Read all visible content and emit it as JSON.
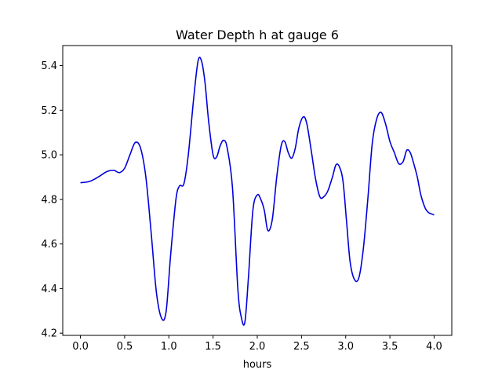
{
  "chart_data": {
    "type": "line",
    "title": "Water Depth h at gauge 6",
    "xlabel": "hours",
    "ylabel": "",
    "xlim": [
      -0.2,
      4.2
    ],
    "ylim": [
      4.19,
      5.49
    ],
    "grid": false,
    "x_ticks": [
      0.0,
      0.5,
      1.0,
      1.5,
      2.0,
      2.5,
      3.0,
      3.5,
      4.0
    ],
    "x_tick_labels": [
      "0.0",
      "0.5",
      "1.0",
      "1.5",
      "2.0",
      "2.5",
      "3.0",
      "3.5",
      "4.0"
    ],
    "y_ticks": [
      4.2,
      4.4,
      4.6,
      4.8,
      5.0,
      5.2,
      5.4
    ],
    "y_tick_labels": [
      "4.2",
      "4.4",
      "4.6",
      "4.8",
      "5.0",
      "5.2",
      "5.4"
    ],
    "series": [
      {
        "color": "#0000dd",
        "x": [
          0.0,
          0.1,
          0.2,
          0.3,
          0.38,
          0.44,
          0.5,
          0.56,
          0.62,
          0.68,
          0.74,
          0.8,
          0.86,
          0.92,
          0.97,
          1.02,
          1.08,
          1.12,
          1.17,
          1.22,
          1.28,
          1.33,
          1.37,
          1.41,
          1.45,
          1.5,
          1.54,
          1.58,
          1.62,
          1.66,
          1.72,
          1.78,
          1.82,
          1.86,
          1.9,
          1.95,
          2.0,
          2.04,
          2.08,
          2.12,
          2.17,
          2.22,
          2.27,
          2.31,
          2.35,
          2.39,
          2.43,
          2.47,
          2.52,
          2.56,
          2.61,
          2.66,
          2.71,
          2.76,
          2.8,
          2.85,
          2.89,
          2.93,
          2.97,
          3.01,
          3.05,
          3.1,
          3.15,
          3.2,
          3.25,
          3.3,
          3.35,
          3.4,
          3.45,
          3.5,
          3.55,
          3.6,
          3.65,
          3.69,
          3.73,
          3.77,
          3.81,
          3.85,
          3.9,
          3.94,
          3.97,
          4.0
        ],
        "y": [
          4.875,
          4.88,
          4.9,
          4.925,
          4.93,
          4.92,
          4.94,
          5.0,
          5.055,
          5.03,
          4.9,
          4.65,
          4.38,
          4.265,
          4.3,
          4.55,
          4.8,
          4.86,
          4.87,
          5.0,
          5.25,
          5.42,
          5.42,
          5.32,
          5.15,
          5.0,
          4.99,
          5.04,
          5.065,
          5.03,
          4.85,
          4.4,
          4.27,
          4.25,
          4.45,
          4.75,
          4.82,
          4.8,
          4.75,
          4.66,
          4.71,
          4.9,
          5.04,
          5.06,
          5.01,
          4.985,
          5.03,
          5.12,
          5.17,
          5.14,
          5.02,
          4.89,
          4.81,
          4.815,
          4.84,
          4.9,
          4.955,
          4.945,
          4.88,
          4.7,
          4.52,
          4.44,
          4.45,
          4.58,
          4.8,
          5.05,
          5.16,
          5.19,
          5.14,
          5.06,
          5.01,
          4.96,
          4.97,
          5.02,
          5.01,
          4.96,
          4.9,
          4.82,
          4.76,
          4.74,
          4.735,
          4.73
        ]
      }
    ]
  }
}
